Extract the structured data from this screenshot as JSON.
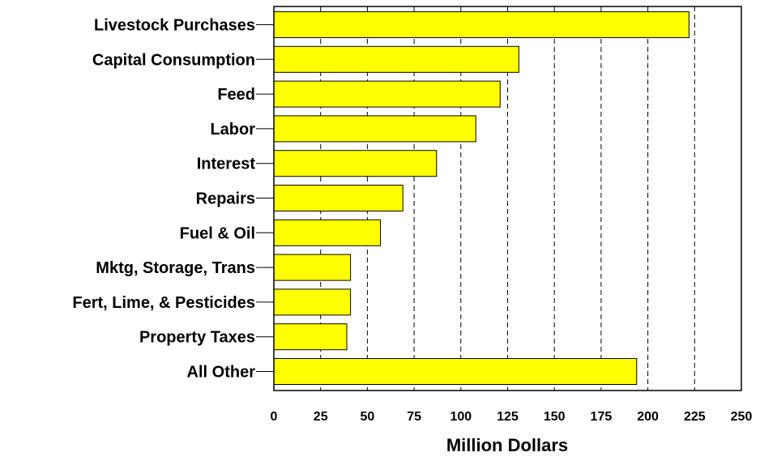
{
  "chart_data": {
    "type": "bar",
    "orientation": "horizontal",
    "categories": [
      "Livestock Purchases",
      "Capital Consumption",
      "Feed",
      "Labor",
      "Interest",
      "Repairs",
      "Fuel & Oil",
      "Mktg, Storage, Trans",
      "Fert, Lime, & Pesticides",
      "Property Taxes",
      "All Other"
    ],
    "values": [
      222,
      131,
      121,
      108,
      87,
      69,
      57,
      41,
      41,
      39,
      194
    ],
    "xlabel": "Million Dollars",
    "xlim": [
      0,
      250
    ],
    "xticks": [
      0,
      25,
      50,
      75,
      100,
      125,
      150,
      175,
      200,
      225,
      250
    ],
    "grid": "vertical dashed",
    "bar_color": "#ffff00",
    "bar_edge_color": "#000000"
  }
}
